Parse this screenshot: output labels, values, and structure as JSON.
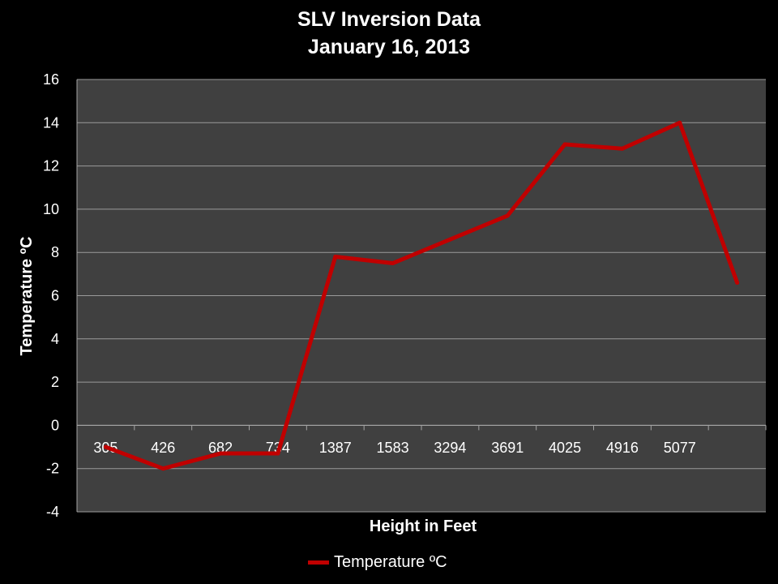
{
  "chart_data": {
    "type": "line",
    "title": "SLV Inversion Data",
    "subtitle": "January 16, 2013",
    "xlabel": "Height in Feet",
    "ylabel": "Temperature ºC",
    "categories": [
      "305",
      "426",
      "682",
      "734",
      "1387",
      "1583",
      "3294",
      "3691",
      "4025",
      "4916",
      "5077",
      ""
    ],
    "series": [
      {
        "name": "Temperature ºC",
        "color": "#c00000",
        "values": [
          -1.0,
          -2.0,
          -1.3,
          -1.3,
          7.8,
          7.5,
          8.6,
          9.7,
          13.0,
          12.8,
          14.0,
          6.6
        ]
      }
    ],
    "ylim": [
      -4,
      16
    ],
    "yticks": [
      -4,
      -2,
      0,
      2,
      4,
      6,
      8,
      10,
      12,
      14,
      16
    ],
    "grid": true,
    "legend": "bottom",
    "plot_background": "#404040",
    "gridline_color": "#9a9a9a"
  }
}
